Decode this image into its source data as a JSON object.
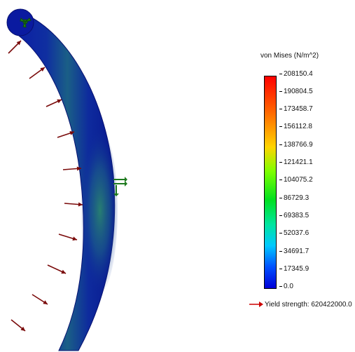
{
  "legend": {
    "title": "von Mises (N/m^2)",
    "ticks": [
      "208150.4",
      "190804.5",
      "173458.7",
      "156112.8",
      "138766.9",
      "121421.1",
      "104075.2",
      "86729.3",
      "69383.5",
      "52037.6",
      "34691.7",
      "17345.9",
      "0.0"
    ],
    "yield_label": "Yield strength: 620422000.0",
    "colors": {
      "max": "#ff0000",
      "mid": "#00e020",
      "min": "#0000d8"
    }
  },
  "model": {
    "part_color": "#0a1a9a",
    "stress_highlight_color": "#1f7a6a",
    "load_arrow_color": "#7a0a0a",
    "fixture_color": "#1e7a1e",
    "load_arrow_count": 11,
    "fixtures": [
      "top-pin-fixture-icon",
      "mid-fixture-icon"
    ]
  }
}
